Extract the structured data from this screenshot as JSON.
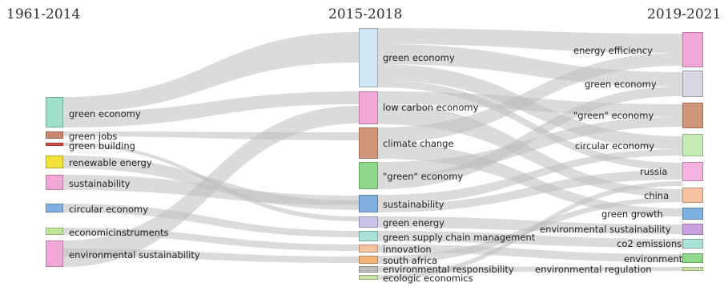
{
  "periods": [
    "1961-2014",
    "2015-2018",
    "2019-2021"
  ],
  "nodes_1961_2014": [
    {
      "label": "green economy",
      "color": "#9ee0c9"
    },
    {
      "label": "green jobs",
      "color": "#c9876b"
    },
    {
      "label": "green building",
      "color": "#d94b4b"
    },
    {
      "label": "renewable energy",
      "color": "#f2e23a"
    },
    {
      "label": "sustainability",
      "color": "#f3a6d8"
    },
    {
      "label": "circular economy",
      "color": "#7fb0e0"
    },
    {
      "label": "economicinstruments",
      "color": "#c4e69a"
    },
    {
      "label": "environmental sustainability",
      "color": "#f3a6d8"
    }
  ],
  "nodes_2015_2018": [
    {
      "label": "green economy",
      "color": "#cfe6f5"
    },
    {
      "label": "low carbon economy",
      "color": "#f3a6d8"
    },
    {
      "label": "climate change",
      "color": "#d0967a"
    },
    {
      "label": "\"green\" economy",
      "color": "#8fd88a"
    },
    {
      "label": "sustainability",
      "color": "#7fb0e0"
    },
    {
      "label": "green energy",
      "color": "#c9c4ec"
    },
    {
      "label": "green supply chain management",
      "color": "#a8e2d8"
    },
    {
      "label": "innovation",
      "color": "#f7c2a0"
    },
    {
      "label": "south africa",
      "color": "#f7b27a"
    },
    {
      "label": "environmental responsibility",
      "color": "#bcbcbc"
    },
    {
      "label": "ecologic economics",
      "color": "#c8e3a6"
    }
  ],
  "nodes_2019_2021": [
    {
      "label": "energy efficiency",
      "color": "#f3a6d8"
    },
    {
      "label": "green economy",
      "color": "#d6d6e4"
    },
    {
      "label": "\"green\" economy",
      "color": "#d0967a"
    },
    {
      "label": "circular economy",
      "color": "#c6ecb4"
    },
    {
      "label": "russia",
      "color": "#f6b3e1"
    },
    {
      "label": "china",
      "color": "#f7c2a0"
    },
    {
      "label": "green growth",
      "color": "#7fb0e0"
    },
    {
      "label": "environmental sustainability",
      "color": "#c9a2e0"
    },
    {
      "label": "co2 emissions",
      "color": "#a8e2d8"
    },
    {
      "label": "environment",
      "color": "#8fd88a"
    },
    {
      "label": "environmental regulation",
      "color": "#c8e3a6"
    }
  ],
  "flow_color": "#bdbdbd"
}
